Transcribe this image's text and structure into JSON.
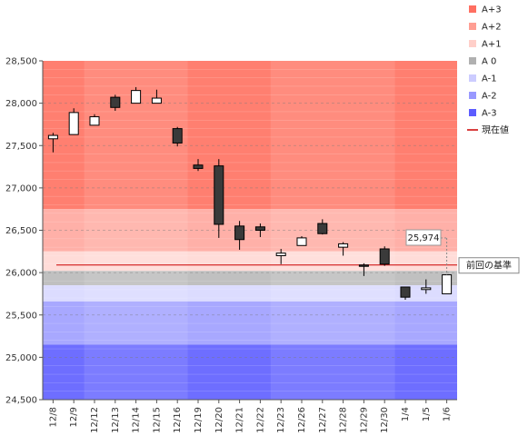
{
  "chart_data": {
    "type": "candlestick",
    "ylim": [
      24500,
      28500
    ],
    "y_ticks": [
      24500,
      25000,
      25500,
      26000,
      26500,
      27000,
      27500,
      28000,
      28500
    ],
    "y_tick_labels": [
      "24,500",
      "25,000",
      "25,500",
      "26,000",
      "26,500",
      "27,000",
      "27,500",
      "28,000",
      "28,500"
    ],
    "x_labels": [
      "12/8",
      "12/9",
      "12/12",
      "12/13",
      "12/14",
      "12/15",
      "12/16",
      "12/19",
      "12/20",
      "12/21",
      "12/22",
      "12/23",
      "12/26",
      "12/27",
      "12/28",
      "12/29",
      "12/30",
      "1/4",
      "1/5",
      "1/6"
    ],
    "candles": [
      {
        "open": 27580,
        "high": 27650,
        "low": 27420,
        "close": 27620
      },
      {
        "open": 27630,
        "high": 27940,
        "low": 27630,
        "close": 27890
      },
      {
        "open": 27740,
        "high": 27870,
        "low": 27740,
        "close": 27840
      },
      {
        "open": 28070,
        "high": 28100,
        "low": 27910,
        "close": 27950
      },
      {
        "open": 28000,
        "high": 28190,
        "low": 28000,
        "close": 28150
      },
      {
        "open": 28000,
        "high": 28160,
        "low": 28000,
        "close": 28060
      },
      {
        "open": 27700,
        "high": 27720,
        "low": 27490,
        "close": 27530
      },
      {
        "open": 27270,
        "high": 27340,
        "low": 27200,
        "close": 27230
      },
      {
        "open": 27260,
        "high": 27340,
        "low": 26410,
        "close": 26570
      },
      {
        "open": 26550,
        "high": 26610,
        "low": 26270,
        "close": 26390
      },
      {
        "open": 26540,
        "high": 26580,
        "low": 26420,
        "close": 26500
      },
      {
        "open": 26200,
        "high": 26280,
        "low": 26100,
        "close": 26230
      },
      {
        "open": 26320,
        "high": 26430,
        "low": 26320,
        "close": 26410
      },
      {
        "open": 26580,
        "high": 26630,
        "low": 26450,
        "close": 26460
      },
      {
        "open": 26300,
        "high": 26360,
        "low": 26200,
        "close": 26340
      },
      {
        "open": 26090,
        "high": 26110,
        "low": 25960,
        "close": 26080
      },
      {
        "open": 26280,
        "high": 26310,
        "low": 26080,
        "close": 26100
      },
      {
        "open": 25830,
        "high": 25830,
        "low": 25680,
        "close": 25710
      },
      {
        "open": 25800,
        "high": 25920,
        "low": 25750,
        "close": 25820
      },
      {
        "open": 25750,
        "high": 25980,
        "low": 25750,
        "close": 25974
      }
    ],
    "bands": [
      {
        "name": "A+3",
        "from": 26750,
        "to": 28500,
        "color": "#ff7f70"
      },
      {
        "name": "A+2",
        "from": 26250,
        "to": 26750,
        "color": "#ffb0a8"
      },
      {
        "name": "A+1",
        "from": 26020,
        "to": 26250,
        "color": "#ffdcd8"
      },
      {
        "name": "A 0",
        "from": 25850,
        "to": 26020,
        "color": "#c0c0c0"
      },
      {
        "name": "A-1",
        "from": 25660,
        "to": 25850,
        "color": "#dcdcff"
      },
      {
        "name": "A-2",
        "from": 25150,
        "to": 25660,
        "color": "#a8a8ff"
      },
      {
        "name": "A-3",
        "from": 24500,
        "to": 25150,
        "color": "#6e6eff"
      }
    ],
    "current_value": 25974,
    "current_value_label": "25,974",
    "previous_base": 26090,
    "previous_base_label": "前回の基準",
    "legend": [
      {
        "label": "A+3",
        "color": "#ff6f61",
        "kind": "swatch"
      },
      {
        "label": "A+2",
        "color": "#ff9e93",
        "kind": "swatch"
      },
      {
        "label": "A+1",
        "color": "#ffcfc9",
        "kind": "swatch"
      },
      {
        "label": "A 0",
        "color": "#b0b0b0",
        "kind": "swatch"
      },
      {
        "label": "A-1",
        "color": "#ccccff",
        "kind": "swatch"
      },
      {
        "label": "A-2",
        "color": "#9999ff",
        "kind": "swatch"
      },
      {
        "label": "A-3",
        "color": "#5c5cff",
        "kind": "swatch"
      },
      {
        "label": "現在値",
        "color": "#cc0000",
        "kind": "line"
      }
    ],
    "legend_position": "top-right",
    "grid": true,
    "alternate_column_shading": true,
    "colors": {
      "bull_fill": "#ffffff",
      "bear_fill": "#3a3a3a",
      "candle_stroke": "#000000",
      "base_line": "#cc0000"
    }
  }
}
